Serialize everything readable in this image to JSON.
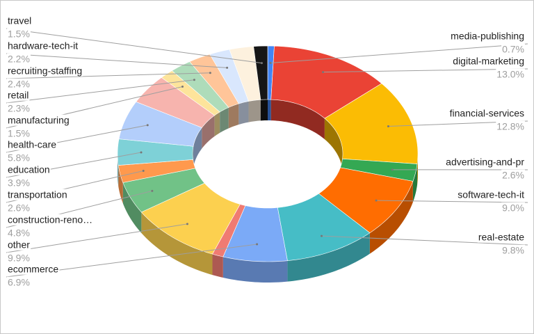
{
  "chart_data": {
    "type": "donut3d",
    "categories": [
      "media-publishing",
      "digital-marketing",
      "financial-services",
      "advertising-and-pr",
      "software-tech-it",
      "real-estate",
      "ecommerce",
      null,
      "other",
      "construction-reno…",
      "transportation",
      "education",
      "health-care",
      null,
      "manufacturing",
      "retail",
      "recruiting-staffing",
      "hardware-tech-it",
      null,
      "travel"
    ],
    "values": [
      0.7,
      13.0,
      12.8,
      2.6,
      9.0,
      9.8,
      6.9,
      1.2,
      9.9,
      4.8,
      2.6,
      3.9,
      5.8,
      4.5,
      1.5,
      2.3,
      2.4,
      2.2,
      2.6,
      1.5
    ],
    "value_labels": [
      "0.7%",
      "13.0%",
      "12.8%",
      "2.6%",
      "9.0%",
      "9.8%",
      "6.9%",
      null,
      "9.9%",
      "4.8%",
      "2.6%",
      "3.9%",
      "5.8%",
      null,
      "1.5%",
      "2.3%",
      "2.4%",
      "2.2%",
      null,
      "1.5%"
    ],
    "colors": [
      "#4285f4",
      "#ea4335",
      "#fbbc04",
      "#34a853",
      "#ff6d01",
      "#46bdc6",
      "#7baaf7",
      "#f07b72",
      "#fcd04f",
      "#71c287",
      "#ff994d",
      "#7ed1d7",
      "#b3cefb",
      "#f7b4ae",
      "#fde49b",
      "#aedcba",
      "#ffc599",
      "#d9e7fd",
      "#fdf1de",
      "#161616"
    ]
  }
}
